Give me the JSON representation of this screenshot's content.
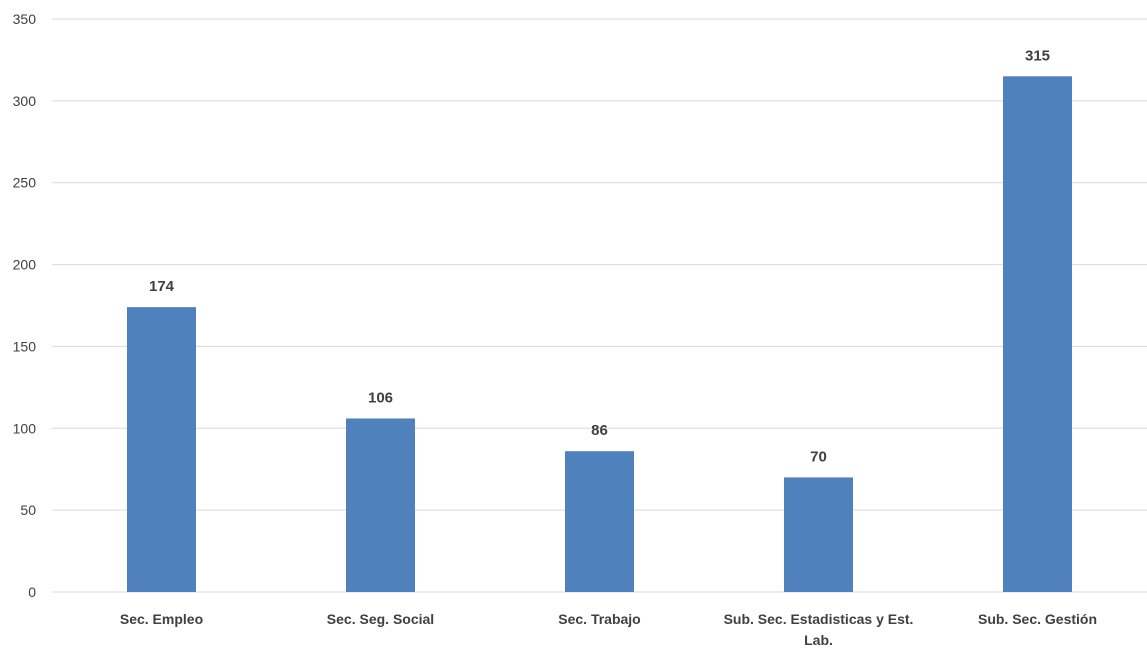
{
  "chart_data": {
    "type": "bar",
    "categories": [
      [
        "Sec. Empleo"
      ],
      [
        "Sec. Seg. Social"
      ],
      [
        "Sec. Trabajo"
      ],
      [
        "Sub. Sec. Estadisticas y Est.",
        "Lab."
      ],
      [
        "Sub. Sec. Gestión"
      ]
    ],
    "values": [
      174,
      106,
      86,
      70,
      315
    ],
    "title": "",
    "xlabel": "",
    "ylabel": "",
    "ylim": [
      0,
      350
    ],
    "yticks": [
      0,
      50,
      100,
      150,
      200,
      250,
      300,
      350
    ],
    "grid": true,
    "legend": "none",
    "bar_color": "#4f81bd",
    "data_labels": true
  }
}
